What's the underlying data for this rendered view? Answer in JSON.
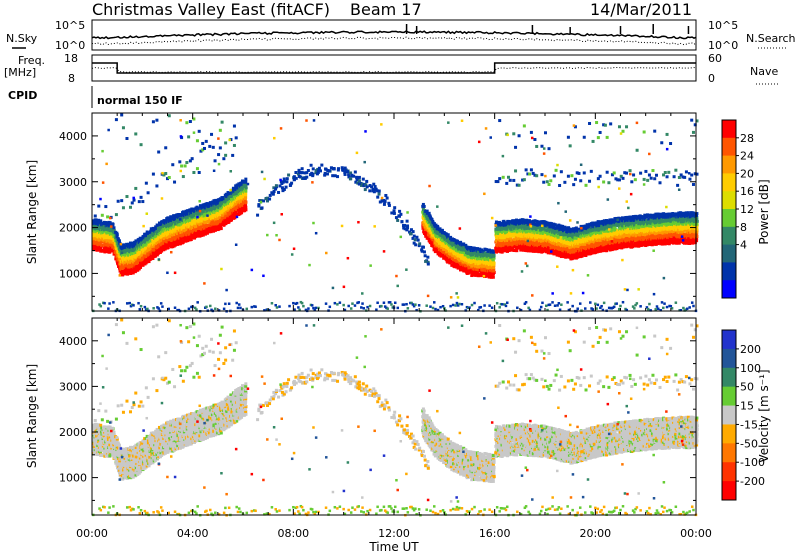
{
  "header": {
    "title": "Christmas Valley East (fitACF)",
    "beam": "Beam 17",
    "date": "14/Mar/2011"
  },
  "labels": {
    "nsky": "N.Sky",
    "nsearch": "N.Search",
    "freq": "Freq.",
    "freq_unit": "[MHz]",
    "nave": "Nave",
    "cpid": "CPID",
    "cpid_value": "normal 150 IF",
    "y_label": "Slant Range [km]",
    "x_label": "Time UT",
    "power_label": "Power [dB]",
    "velocity_label": "Velocity [m s⁻¹]",
    "nsky_ticks": [
      "10^5",
      "10^0"
    ],
    "nsearch_ticks": [
      "10^5",
      "10^0"
    ],
    "freq_ticks": [
      "18",
      "8"
    ],
    "nave_ticks": [
      "60",
      "0"
    ]
  },
  "chart_data": [
    {
      "type": "heatmap",
      "name": "power",
      "x_ticks": [
        "00:00",
        "04:00",
        "08:00",
        "12:00",
        "16:00",
        "20:00",
        "00:00"
      ],
      "x_range_hours": [
        0,
        24
      ],
      "y_ticks": [
        1000,
        2000,
        3000,
        4000
      ],
      "y_range_km": [
        180,
        4500
      ],
      "colorbar": {
        "label": "Power [dB]",
        "tick_values": [
          "28",
          "24",
          "20",
          "16",
          "12",
          "8",
          "4"
        ],
        "colors": [
          "#ff0000",
          "#ff5500",
          "#ff9900",
          "#ffcc00",
          "#dddd00",
          "#66cc33",
          "#338866",
          "#226677",
          "#0033aa",
          "#0000ff"
        ]
      }
    },
    {
      "type": "heatmap",
      "name": "velocity",
      "x_ticks": [
        "00:00",
        "04:00",
        "08:00",
        "12:00",
        "16:00",
        "20:00",
        "00:00"
      ],
      "x_range_hours": [
        0,
        24
      ],
      "y_ticks": [
        1000,
        2000,
        3000,
        4000
      ],
      "y_range_km": [
        180,
        4500
      ],
      "colorbar": {
        "label": "Velocity [m s⁻¹]",
        "tick_values": [
          "200",
          "100",
          "50",
          "15",
          "-15",
          "-50",
          "-100",
          "-200"
        ],
        "colors": [
          "#2233cc",
          "#225599",
          "#338866",
          "#66cc33",
          "#c8c8c8",
          "#ffaa00",
          "#ff7700",
          "#ff3300",
          "#ff0000"
        ]
      }
    }
  ]
}
